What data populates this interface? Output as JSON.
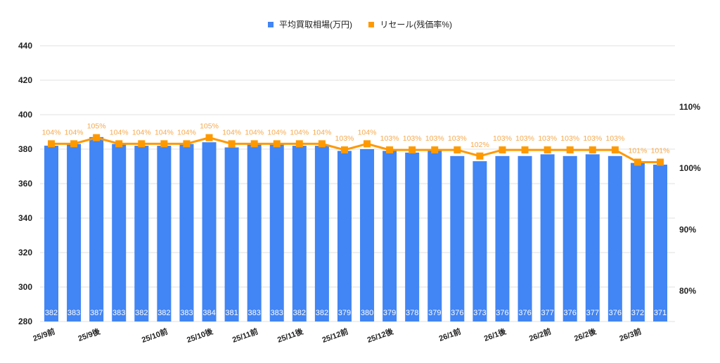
{
  "legend": {
    "bar_label": "平均買取相場(万円)",
    "line_label": "リセール(残価率%)"
  },
  "colors": {
    "bar": "#4285F4",
    "line": "#FF9900",
    "line_label": "#F6A94B",
    "grid": "#E0E0E0"
  },
  "chart_data": {
    "type": "bar",
    "title": "",
    "xlabel": "",
    "ylabel": "",
    "categories": [
      "25/9前",
      "",
      "25/9後",
      "",
      "25/10前",
      "",
      "25/10後",
      "",
      "25/11前",
      "",
      "25/11後",
      "",
      "25/12前",
      "",
      "25/12後",
      "",
      "",
      "26/1前",
      "",
      "26/1後",
      "",
      "26/2前",
      "",
      "26/2後",
      "",
      "26/3前",
      "",
      ""
    ],
    "x_tick_labels": [
      {
        "index": 0,
        "label": "25/9前"
      },
      {
        "index": 2,
        "label": "25/9後"
      },
      {
        "index": 5,
        "label": "25/10前"
      },
      {
        "index": 7,
        "label": "25/10後"
      },
      {
        "index": 9,
        "label": "25/11前"
      },
      {
        "index": 11,
        "label": "25/11後"
      },
      {
        "index": 13,
        "label": "25/12前"
      },
      {
        "index": 15,
        "label": "25/12後"
      },
      {
        "index": 18,
        "label": "26/1前"
      },
      {
        "index": 20,
        "label": "26/1後"
      },
      {
        "index": 22,
        "label": "26/2前"
      },
      {
        "index": 24,
        "label": "26/2後"
      },
      {
        "index": 26,
        "label": "26/3前"
      }
    ],
    "series": [
      {
        "name": "平均買取相場(万円)",
        "type": "bar",
        "axis": "left",
        "values": [
          382,
          383,
          387,
          383,
          382,
          382,
          383,
          384,
          381,
          383,
          383,
          382,
          382,
          379,
          380,
          379,
          378,
          379,
          376,
          373,
          376,
          376,
          377,
          376,
          377,
          376,
          372,
          371
        ]
      },
      {
        "name": "リセール(残価率%)",
        "type": "line",
        "axis": "right",
        "values": [
          104,
          104,
          105,
          104,
          104,
          104,
          104,
          105,
          104,
          104,
          104,
          104,
          104,
          103,
          104,
          103,
          103,
          103,
          103,
          102,
          103,
          103,
          103,
          103,
          103,
          103,
          101,
          101
        ]
      }
    ],
    "ylim": [
      280,
      440
    ],
    "yticks": [
      280,
      300,
      320,
      340,
      360,
      380,
      400,
      420,
      440
    ],
    "y2lim": [
      75,
      120
    ],
    "y2ticks": [
      "80%",
      "90%",
      "100%",
      "110%"
    ],
    "grid": true,
    "legend_position": "top"
  }
}
